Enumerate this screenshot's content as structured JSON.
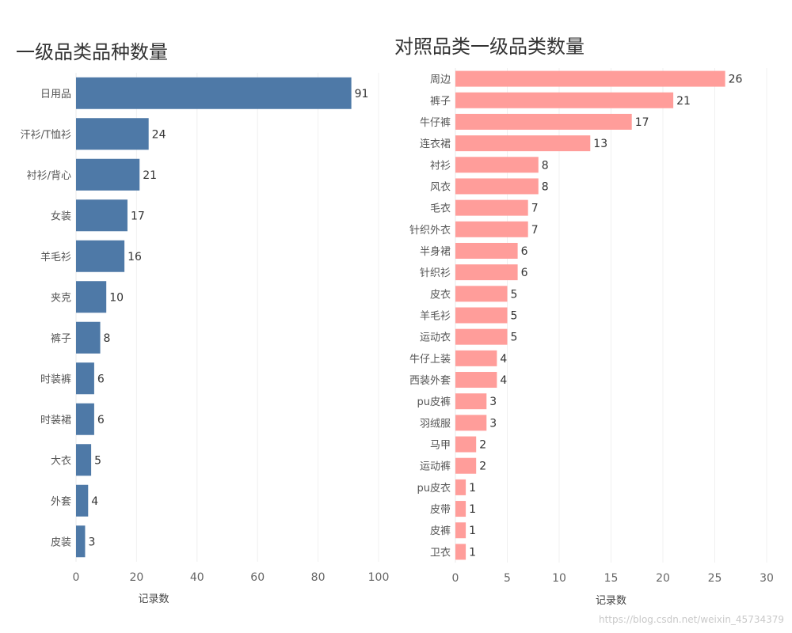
{
  "chart_data": [
    {
      "type": "bar",
      "orientation": "horizontal",
      "title": "一级品类品种数量",
      "categories": [
        "日用品",
        "汗衫/T恤衫",
        "衬衫/背心",
        "女装",
        "羊毛衫",
        "夹克",
        "裤子",
        "时装裤",
        "时装裙",
        "大衣",
        "外套",
        "皮装"
      ],
      "values": [
        91,
        24,
        21,
        17,
        16,
        10,
        8,
        6,
        6,
        5,
        4,
        3
      ],
      "xlabel": "记录数",
      "ylabel": "",
      "xlim": [
        0,
        100
      ],
      "xticks": [
        0,
        20,
        40,
        60,
        80,
        100
      ],
      "color": "#4e79a7",
      "grid": true
    },
    {
      "type": "bar",
      "orientation": "horizontal",
      "title": "对照品类一级品类数量",
      "categories": [
        "周边",
        "裤子",
        "牛仔裤",
        "连衣裙",
        "衬衫",
        "风衣",
        "毛衣",
        "针织外衣",
        "半身裙",
        "针织衫",
        "皮衣",
        "羊毛衫",
        "运动衣",
        "牛仔上装",
        "西装外套",
        "pu皮裤",
        "羽绒服",
        "马甲",
        "运动裤",
        "pu皮衣",
        "皮带",
        "皮裤",
        "卫衣"
      ],
      "values": [
        26,
        21,
        17,
        13,
        8,
        8,
        7,
        7,
        6,
        6,
        5,
        5,
        5,
        4,
        4,
        3,
        3,
        2,
        2,
        1,
        1,
        1,
        1
      ],
      "xlabel": "记录数",
      "ylabel": "",
      "xlim": [
        0,
        30
      ],
      "xticks": [
        0,
        5,
        10,
        15,
        20,
        25,
        30
      ],
      "color": "#ff9d9a",
      "grid": true
    }
  ],
  "watermark": "https://blog.csdn.net/weixin_45734379"
}
